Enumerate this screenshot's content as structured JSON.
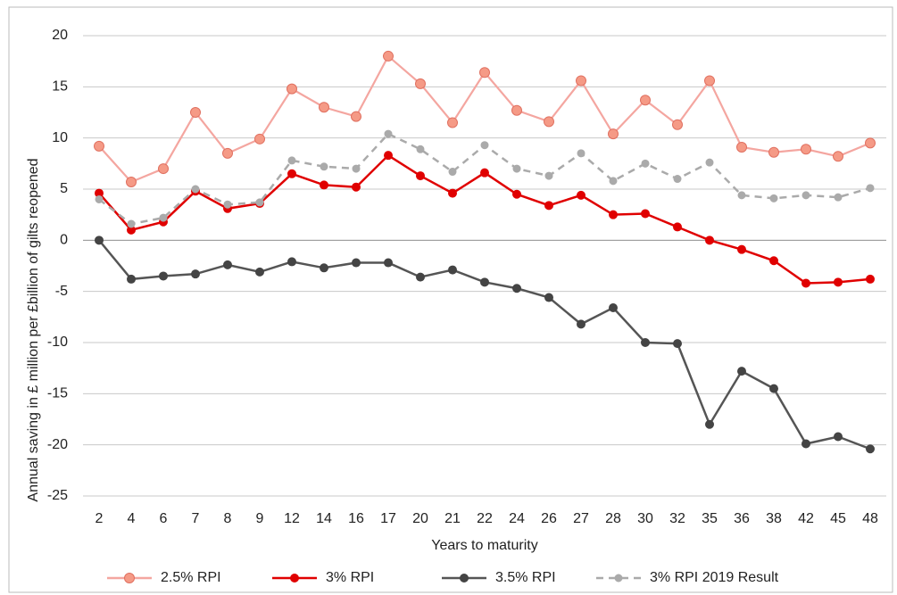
{
  "chart_data": {
    "type": "line",
    "x_label": "Years to maturity",
    "y_label": "Annual  saving in £ million per £billion of gilts reopened",
    "categories": [
      2,
      4,
      6,
      7,
      8,
      9,
      12,
      14,
      16,
      17,
      20,
      21,
      22,
      24,
      26,
      27,
      28,
      30,
      32,
      35,
      36,
      38,
      42,
      45,
      48
    ],
    "series": [
      {
        "name": "2.5% RPI",
        "color": "#f4a6a0",
        "marker_color": "#f59a86",
        "dashed": false,
        "values": [
          9.2,
          5.7,
          7.0,
          12.5,
          8.5,
          9.9,
          14.8,
          13.0,
          12.1,
          18.0,
          15.3,
          11.5,
          16.4,
          12.7,
          11.6,
          15.6,
          10.4,
          13.7,
          11.3,
          15.6,
          9.1,
          8.6,
          8.9,
          8.2,
          9.5
        ]
      },
      {
        "name": "3% RPI",
        "color": "#e00000",
        "marker_color": "#e00000",
        "dashed": false,
        "values": [
          4.6,
          1.0,
          1.8,
          4.8,
          3.1,
          3.6,
          6.5,
          5.4,
          5.2,
          8.3,
          6.3,
          4.6,
          6.6,
          4.5,
          3.4,
          4.4,
          2.5,
          2.6,
          1.3,
          0.0,
          -0.9,
          -2.0,
          -4.2,
          -4.1,
          -3.8
        ]
      },
      {
        "name": "3.5% RPI",
        "color": "#555555",
        "marker_color": "#444444",
        "dashed": false,
        "values": [
          0.0,
          -3.8,
          -3.5,
          -3.3,
          -2.4,
          -3.1,
          -2.1,
          -2.7,
          -2.2,
          -2.2,
          -3.6,
          -2.9,
          -4.1,
          -4.7,
          -5.6,
          -8.2,
          -6.6,
          -10.0,
          -10.1,
          -18.0,
          -12.8,
          -14.5,
          -19.9,
          -19.2,
          -20.4
        ]
      },
      {
        "name": "3% RPI 2019 Result",
        "color": "#aaaaaa",
        "marker_color": "#aaaaaa",
        "dashed": true,
        "values": [
          4.0,
          1.6,
          2.2,
          5.0,
          3.5,
          3.7,
          7.8,
          7.2,
          7.0,
          10.4,
          8.9,
          6.7,
          9.3,
          7.0,
          6.3,
          8.5,
          5.8,
          7.5,
          6.0,
          7.6,
          4.4,
          4.1,
          4.4,
          4.2,
          5.1
        ]
      }
    ],
    "ylim": [
      -25,
      20
    ],
    "yticks": [
      -25,
      -20,
      -15,
      -10,
      -5,
      0,
      5,
      10,
      15,
      20
    ],
    "grid": true,
    "legend": "bottom"
  }
}
